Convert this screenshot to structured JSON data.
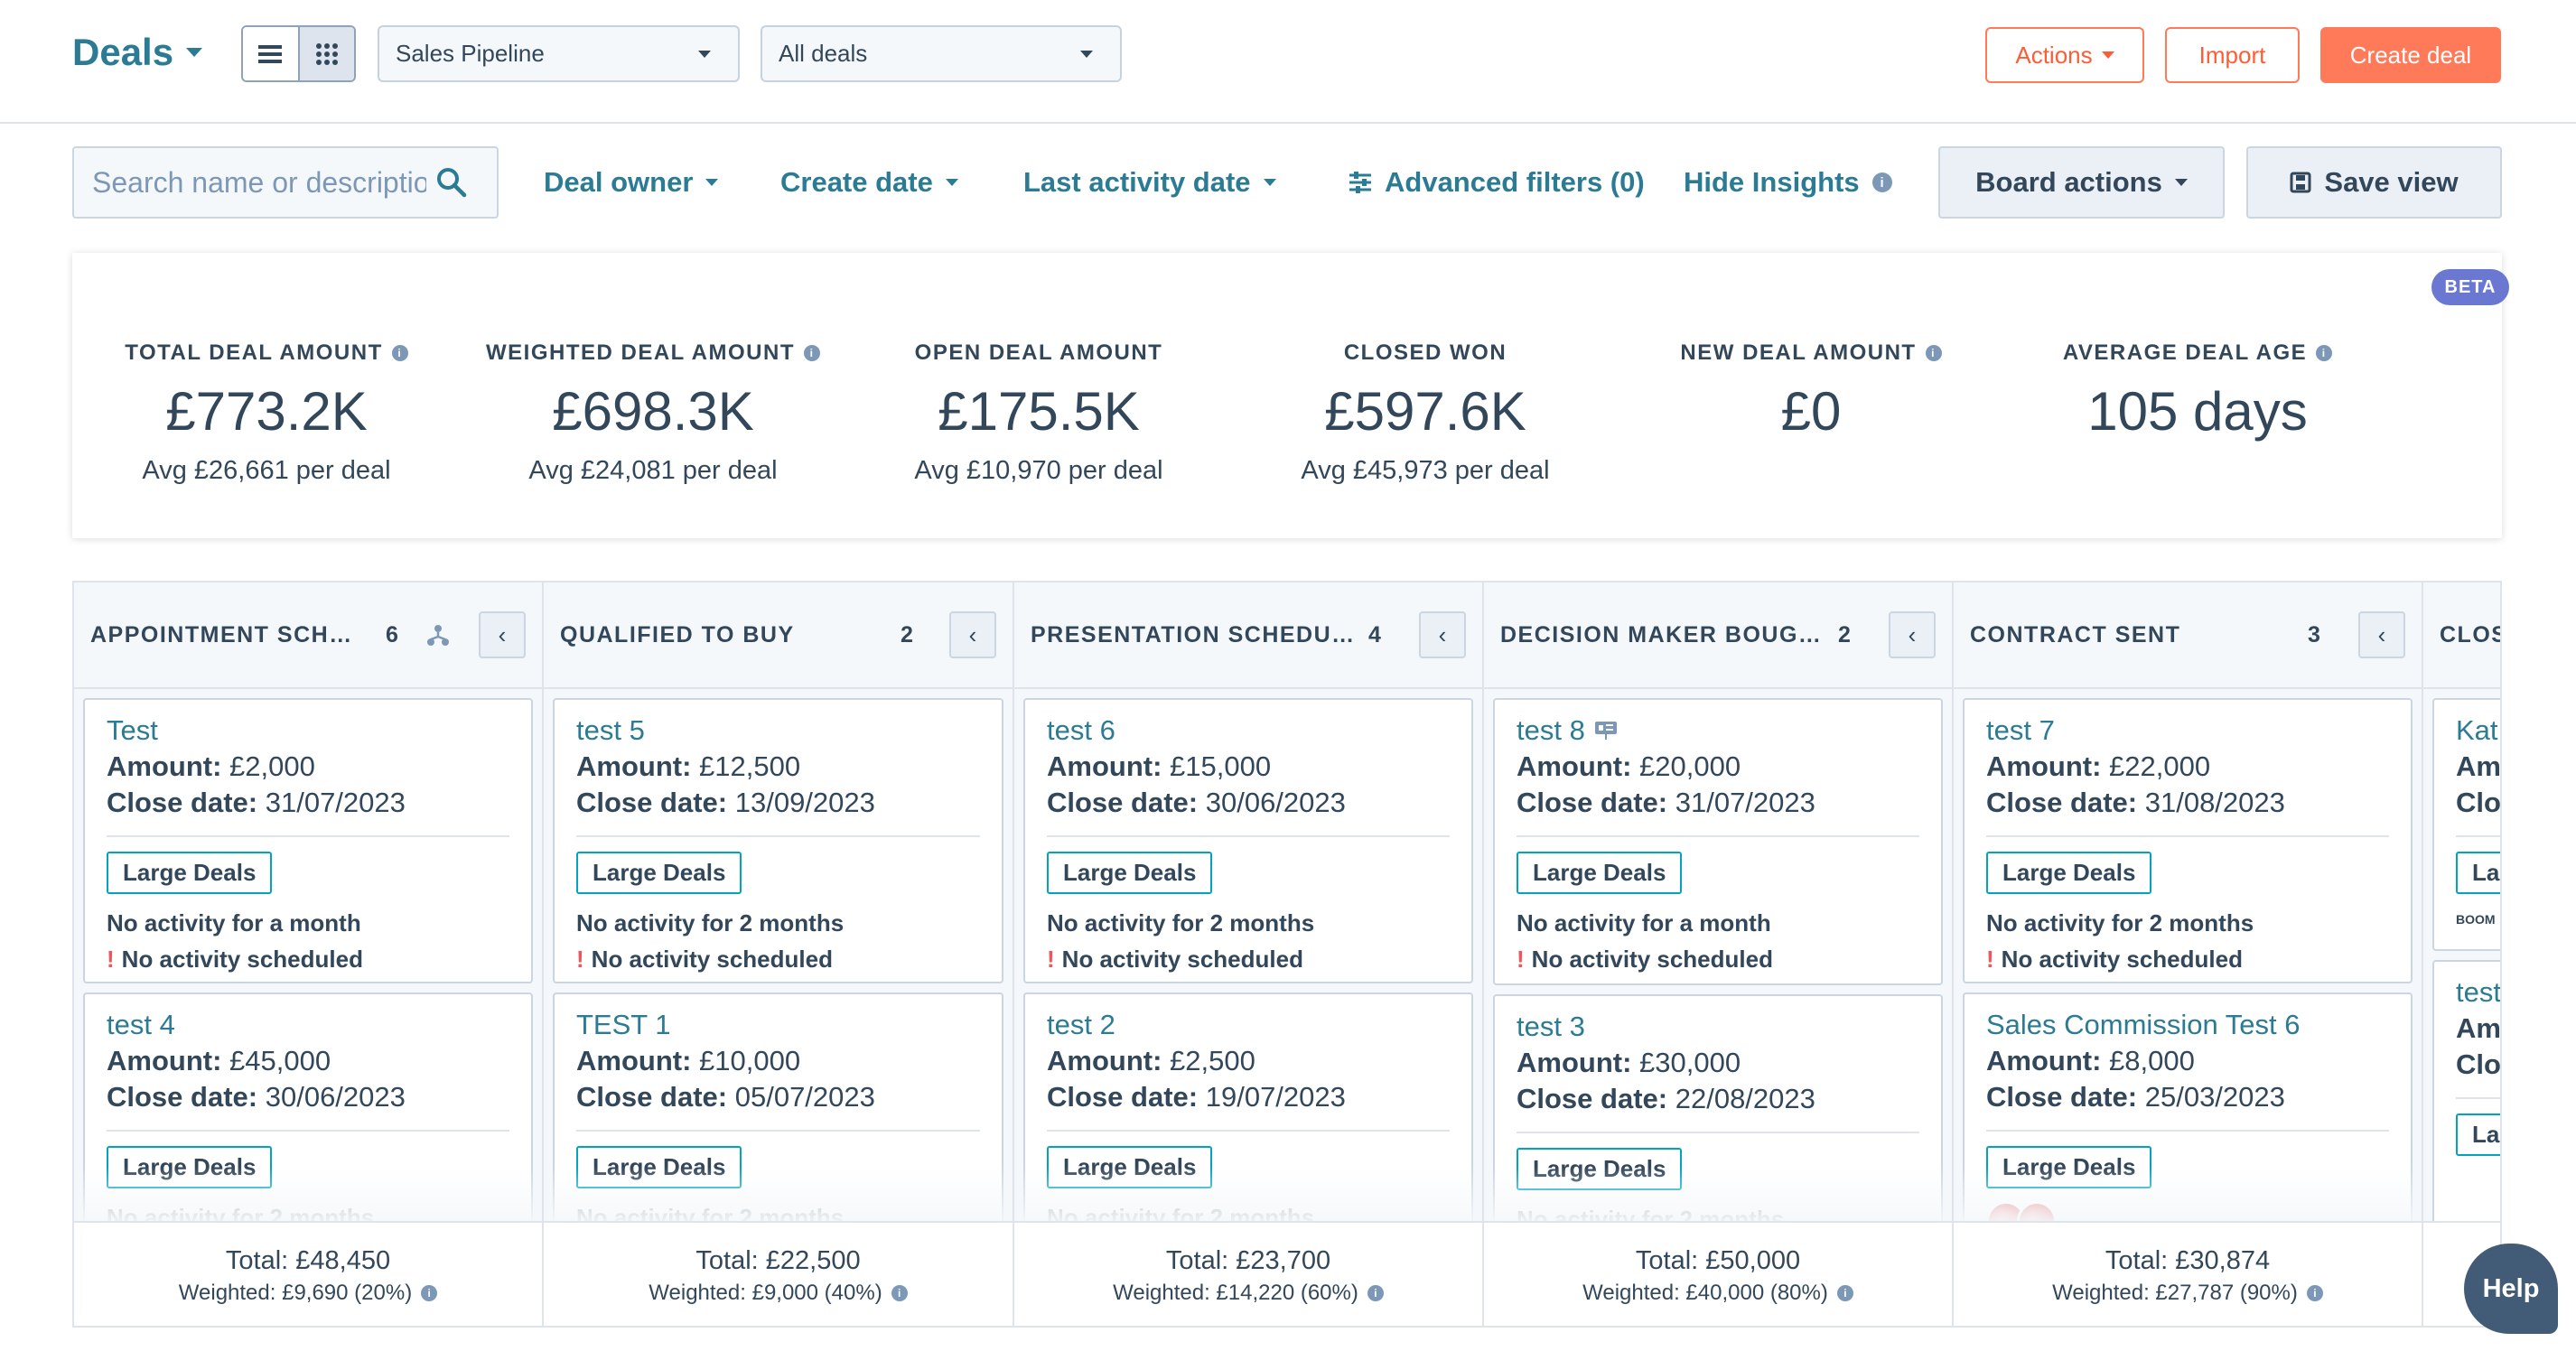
{
  "header": {
    "title": "Deals",
    "pipeline_select": "Sales Pipeline",
    "view_select": "All deals",
    "actions_label": "Actions",
    "import_label": "Import",
    "create_label": "Create deal"
  },
  "filters": {
    "search_placeholder": "Search name or description",
    "deal_owner": "Deal owner",
    "create_date": "Create date",
    "last_activity_date": "Last activity date",
    "advanced_filters": "Advanced filters (0)",
    "hide_insights": "Hide Insights",
    "board_actions": "Board actions",
    "save_view": "Save view"
  },
  "insights": {
    "beta": "BETA",
    "stats": [
      {
        "label": "TOTAL DEAL AMOUNT",
        "value": "£773.2K",
        "avg": "Avg £26,661 per deal"
      },
      {
        "label": "WEIGHTED DEAL AMOUNT",
        "value": "£698.3K",
        "avg": "Avg £24,081 per deal"
      },
      {
        "label": "OPEN DEAL AMOUNT",
        "value": "£175.5K",
        "avg": "Avg £10,970 per deal"
      },
      {
        "label": "CLOSED WON",
        "value": "£597.6K",
        "avg": "Avg £45,973 per deal"
      },
      {
        "label": "NEW DEAL AMOUNT",
        "value": "£0",
        "avg": ""
      },
      {
        "label": "AVERAGE DEAL AGE",
        "value": "105 days",
        "avg": ""
      }
    ]
  },
  "labels": {
    "amount": "Amount:",
    "close_date": "Close date:",
    "no_activity_scheduled": "No activity scheduled"
  },
  "columns": [
    {
      "name": "APPOINTMENT SCHED...",
      "count": "6",
      "total": "Total: £48,450",
      "weighted": "Weighted: £9,690 (20%)",
      "cards": [
        {
          "name": "Test",
          "amount": "£2,000",
          "close": "31/07/2023",
          "tag": "Large Deals",
          "activity": "No activity for a month"
        },
        {
          "name": "test 4",
          "amount": "£45,000",
          "close": "30/06/2023",
          "tag": "Large Deals",
          "activity": "No activity for 2 months"
        }
      ]
    },
    {
      "name": "QUALIFIED TO BUY",
      "count": "2",
      "total": "Total: £22,500",
      "weighted": "Weighted: £9,000 (40%)",
      "cards": [
        {
          "name": "test 5",
          "amount": "£12,500",
          "close": "13/09/2023",
          "tag": "Large Deals",
          "activity": "No activity for 2 months"
        },
        {
          "name": "TEST 1",
          "amount": "£10,000",
          "close": "05/07/2023",
          "tag": "Large Deals",
          "activity": "No activity for 2 months"
        }
      ]
    },
    {
      "name": "PRESENTATION SCHEDULED",
      "count": "4",
      "total": "Total: £23,700",
      "weighted": "Weighted: £14,220 (60%)",
      "cards": [
        {
          "name": "test 6",
          "amount": "£15,000",
          "close": "30/06/2023",
          "tag": "Large Deals",
          "activity": "No activity for 2 months"
        },
        {
          "name": "test 2",
          "amount": "£2,500",
          "close": "19/07/2023",
          "tag": "Large Deals",
          "activity": "No activity for 2 months"
        }
      ]
    },
    {
      "name": "DECISION MAKER BOUGHT-...",
      "count": "2",
      "total": "Total: £50,000",
      "weighted": "Weighted: £40,000 (80%)",
      "cards": [
        {
          "name": "test 8",
          "amount": "£20,000",
          "close": "31/07/2023",
          "tag": "Large Deals",
          "activity": "No activity for a month"
        },
        {
          "name": "test 3",
          "amount": "£30,000",
          "close": "22/08/2023",
          "tag": "Large Deals",
          "activity": "No activity for 2 months"
        }
      ]
    },
    {
      "name": "CONTRACT SENT",
      "count": "3",
      "total": "Total: £30,874",
      "weighted": "Weighted: £27,787 (90%)",
      "cards": [
        {
          "name": "test 7",
          "amount": "£22,000",
          "close": "31/08/2023",
          "tag": "Large Deals",
          "activity": "No activity for 2 months"
        },
        {
          "name": "Sales Commission Test 6",
          "amount": "£8,000",
          "close": "25/03/2023",
          "tag": "Large Deals",
          "activity": ""
        }
      ]
    },
    {
      "name": "CLOSED WON",
      "count": "",
      "total": "",
      "weighted": "",
      "cards": [
        {
          "name": "Kat",
          "amount": "",
          "close": "",
          "tag": "La",
          "activity": ""
        },
        {
          "name": "test",
          "amount": "",
          "close": "",
          "tag": "La",
          "activity": ""
        }
      ]
    }
  ],
  "help_label": "Help",
  "colors": {
    "link": "#2c7b94",
    "accent": "#ff7a59",
    "text": "#33475b",
    "tag_border": "#00a4bd"
  }
}
